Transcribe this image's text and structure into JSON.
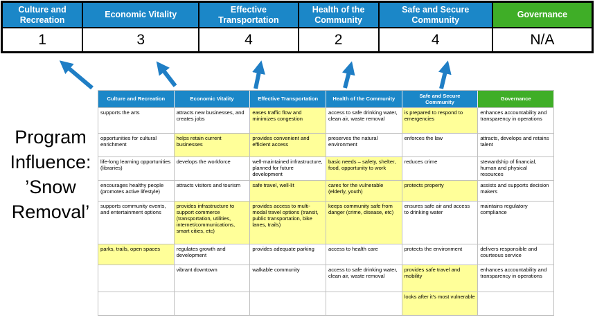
{
  "title": "Program Influence: ’Snow Removal’",
  "title_lines": [
    "Program",
    "Influence:",
    "’Snow",
    "Removal’"
  ],
  "colors": {
    "header_blue": "#1b87c8",
    "header_green": "#3fae27",
    "highlight_yellow": "#ffff99",
    "arrow_blue": "#1f7ec5"
  },
  "scoreboard": {
    "columns": [
      {
        "label": "Culture and Recreation",
        "score": "1",
        "color": "blue"
      },
      {
        "label": "Economic Vitality",
        "score": "3",
        "color": "blue"
      },
      {
        "label": "Effective Transportation",
        "score": "4",
        "color": "blue"
      },
      {
        "label": "Health of the Community",
        "score": "2",
        "color": "blue"
      },
      {
        "label": "Safe and Secure Community",
        "score": "4",
        "color": "blue"
      },
      {
        "label": "Governance",
        "score": "N/A",
        "color": "green"
      }
    ]
  },
  "table": {
    "headers": [
      "Culture and Recreation",
      "Economic Vitality",
      "Effective Transportation",
      "Health of the Community",
      "Safe and Secure Community",
      "Governance"
    ],
    "rows": [
      [
        {
          "text": "supports the arts",
          "highlight": false
        },
        {
          "text": "attracts new businesses, and creates jobs",
          "highlight": false
        },
        {
          "text": "eases traffic flow and minimizes congestion",
          "highlight": true
        },
        {
          "text": "access to safe drinking water, clean air, waste removal",
          "highlight": false
        },
        {
          "text": "is prepared to respond to emergencies",
          "highlight": true
        },
        {
          "text": "enhances accountability and transparency in operations",
          "highlight": false
        }
      ],
      [
        {
          "text": "opportunities for cultural enrichment",
          "highlight": false
        },
        {
          "text": "helps retain current businesses",
          "highlight": true
        },
        {
          "text": "provides convenient and efficient access",
          "highlight": true
        },
        {
          "text": "preserves the natural environment",
          "highlight": false
        },
        {
          "text": "enforces the law",
          "highlight": false
        },
        {
          "text": "attracts, develops and retains talent",
          "highlight": false
        }
      ],
      [
        {
          "text": "life-long learning opportunities (libraries)",
          "highlight": false
        },
        {
          "text": "develops the workforce",
          "highlight": false
        },
        {
          "text": "well-maintained infrastructure, planned for future development",
          "highlight": false
        },
        {
          "text": "basic needs – safety, shelter, food, opportunity to work",
          "highlight": true
        },
        {
          "text": "reduces crime",
          "highlight": false
        },
        {
          "text": "stewardship of financial, human and physical resources",
          "highlight": false
        }
      ],
      [
        {
          "text": "encourages healthy people (promotes active lifestyle)",
          "highlight": false
        },
        {
          "text": "attracts visitors and tourism",
          "highlight": false
        },
        {
          "text": "safe travel, well-lit",
          "highlight": true
        },
        {
          "text": "cares for the vulnerable (elderly, youth)",
          "highlight": true
        },
        {
          "text": "protects property",
          "highlight": true
        },
        {
          "text": "assists and supports decision makers",
          "highlight": false
        }
      ],
      [
        {
          "text": "supports community events, and entertainment options",
          "highlight": false
        },
        {
          "text": "provides infrastructure to support commerce (transportation, utilities, internet/communications, smart cities, etc)",
          "highlight": true
        },
        {
          "text": "provides access to multi-modal travel options (transit, public transportation, bike lanes, trails)",
          "highlight": true
        },
        {
          "text": "keeps community safe from danger (crime, disease, etc)",
          "highlight": true
        },
        {
          "text": "ensures safe air and access to drinking water",
          "highlight": false
        },
        {
          "text": "maintains regulatory compliance",
          "highlight": false
        }
      ],
      [
        {
          "text": "parks, trails, open spaces",
          "highlight": true
        },
        {
          "text": "regulates growth and development",
          "highlight": false
        },
        {
          "text": "provides adequate parking",
          "highlight": false
        },
        {
          "text": "access to health care",
          "highlight": false
        },
        {
          "text": "protects the environment",
          "highlight": false
        },
        {
          "text": "delivers responsible and courteous service",
          "highlight": false
        }
      ],
      [
        {
          "text": "",
          "highlight": false
        },
        {
          "text": "vibrant downtown",
          "highlight": false
        },
        {
          "text": "walkable community",
          "highlight": false
        },
        {
          "text": "access to safe drinking water, clean air, waste removal",
          "highlight": false
        },
        {
          "text": "provides safe travel and mobility",
          "highlight": true
        },
        {
          "text": "enhances accountability and transparency in operations",
          "highlight": false
        }
      ],
      [
        {
          "text": "",
          "highlight": false
        },
        {
          "text": "",
          "highlight": false
        },
        {
          "text": "",
          "highlight": false
        },
        {
          "text": "",
          "highlight": false
        },
        {
          "text": "looks after it's most vulnerable",
          "highlight": true
        },
        {
          "text": "",
          "highlight": false
        }
      ]
    ]
  }
}
